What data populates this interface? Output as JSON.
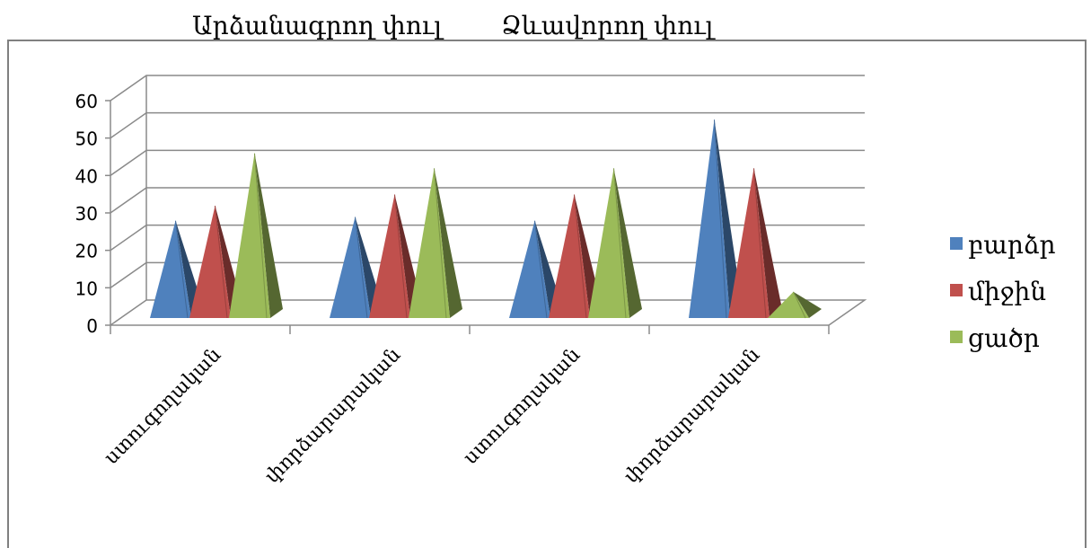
{
  "top_titles": [
    "Արձանագրող փուլ",
    "Ձևավորող փուլ"
  ],
  "chart_data": {
    "type": "bar",
    "style": "3d-pyramid",
    "categories": [
      "ստուգողական",
      "փորձարարական",
      "ստուգողական",
      "փորձարարական"
    ],
    "series": [
      {
        "name": "բարձր",
        "color": "#4F81BD",
        "values": [
          26,
          27,
          26,
          53
        ]
      },
      {
        "name": "միջին",
        "color": "#C0504D",
        "values": [
          30,
          33,
          33,
          40
        ]
      },
      {
        "name": "ցածր",
        "color": "#9BBB59",
        "values": [
          44,
          40,
          40,
          7
        ]
      }
    ],
    "y_ticks": [
      "0",
      "10",
      "20",
      "30",
      "40",
      "50",
      "60"
    ],
    "ylim": [
      0,
      60
    ],
    "grid": true,
    "legend_position": "right"
  }
}
